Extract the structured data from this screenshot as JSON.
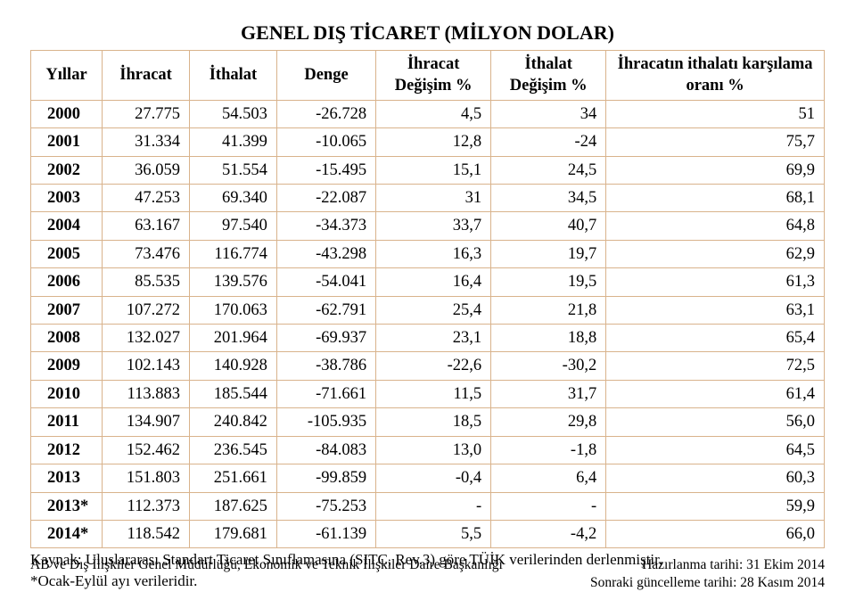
{
  "title": "GENEL DIŞ TİCARET (MİLYON DOLAR)",
  "columns": [
    "Yıllar",
    "İhracat",
    "İthalat",
    "Denge",
    "İhracat Değişim %",
    "İthalat Değişim %",
    "İhracatın ithalatı karşılama oranı %"
  ],
  "rows": [
    {
      "year": "2000",
      "ihracat": "27.775",
      "ithalat": "54.503",
      "denge": "-26.728",
      "ihrDeg": "4,5",
      "ithDeg": "34",
      "oran": "51"
    },
    {
      "year": "2001",
      "ihracat": "31.334",
      "ithalat": "41.399",
      "denge": "-10.065",
      "ihrDeg": "12,8",
      "ithDeg": "-24",
      "oran": "75,7"
    },
    {
      "year": "2002",
      "ihracat": "36.059",
      "ithalat": "51.554",
      "denge": "-15.495",
      "ihrDeg": "15,1",
      "ithDeg": "24,5",
      "oran": "69,9"
    },
    {
      "year": "2003",
      "ihracat": "47.253",
      "ithalat": "69.340",
      "denge": "-22.087",
      "ihrDeg": "31",
      "ithDeg": "34,5",
      "oran": "68,1"
    },
    {
      "year": "2004",
      "ihracat": "63.167",
      "ithalat": "97.540",
      "denge": "-34.373",
      "ihrDeg": "33,7",
      "ithDeg": "40,7",
      "oran": "64,8"
    },
    {
      "year": "2005",
      "ihracat": "73.476",
      "ithalat": "116.774",
      "denge": "-43.298",
      "ihrDeg": "16,3",
      "ithDeg": "19,7",
      "oran": "62,9"
    },
    {
      "year": "2006",
      "ihracat": "85.535",
      "ithalat": "139.576",
      "denge": "-54.041",
      "ihrDeg": "16,4",
      "ithDeg": "19,5",
      "oran": "61,3"
    },
    {
      "year": "2007",
      "ihracat": "107.272",
      "ithalat": "170.063",
      "denge": "-62.791",
      "ihrDeg": "25,4",
      "ithDeg": "21,8",
      "oran": "63,1"
    },
    {
      "year": "2008",
      "ihracat": "132.027",
      "ithalat": "201.964",
      "denge": "-69.937",
      "ihrDeg": "23,1",
      "ithDeg": "18,8",
      "oran": "65,4"
    },
    {
      "year": "2009",
      "ihracat": "102.143",
      "ithalat": "140.928",
      "denge": "-38.786",
      "ihrDeg": "-22,6",
      "ithDeg": "-30,2",
      "oran": "72,5"
    },
    {
      "year": "2010",
      "ihracat": "113.883",
      "ithalat": "185.544",
      "denge": "-71.661",
      "ihrDeg": "11,5",
      "ithDeg": "31,7",
      "oran": "61,4"
    },
    {
      "year": "2011",
      "ihracat": "134.907",
      "ithalat": "240.842",
      "denge": "-105.935",
      "ihrDeg": "18,5",
      "ithDeg": "29,8",
      "oran": "56,0"
    },
    {
      "year": "2012",
      "ihracat": "152.462",
      "ithalat": "236.545",
      "denge": "-84.083",
      "ihrDeg": "13,0",
      "ithDeg": "-1,8",
      "oran": "64,5"
    },
    {
      "year": "2013",
      "ihracat": "151.803",
      "ithalat": "251.661",
      "denge": "-99.859",
      "ihrDeg": "-0,4",
      "ithDeg": "6,4",
      "oran": "60,3"
    },
    {
      "year": "2013*",
      "ihracat": "112.373",
      "ithalat": "187.625",
      "denge": "-75.253",
      "ihrDeg": "-",
      "ithDeg": "-",
      "oran": "59,9"
    },
    {
      "year": "2014*",
      "ihracat": "118.542",
      "ithalat": "179.681",
      "denge": "-61.139",
      "ihrDeg": "5,5",
      "ithDeg": "-4,2",
      "oran": "66,0"
    }
  ],
  "notes": {
    "line1": "Kaynak: Uluslararası Standart Ticaret Sınıflamasına (SITC, Rev.3) göre TÜİK verilerinden derlenmiştir.",
    "line2": "*Ocak-Eylül ayı verileridir."
  },
  "footer": {
    "left": "AB ve Dış İlişkiler Genel Müdürlüğü, Ekonomik ve Teknik İlişkiler Daire Başkanlığı",
    "right1": "Hazırlanma tarihi: 31 Ekim 2014",
    "right2": "Sonraki güncelleme tarihi: 28 Kasım 2014"
  },
  "style": {
    "border_color": "#d9b38c",
    "text_color": "#000000",
    "background_color": "#ffffff",
    "title_fontsize": 22,
    "cell_fontsize": 18.5,
    "note_fontsize": 17,
    "footer_fontsize": 15.5,
    "column_widths_pct": [
      9,
      11,
      11,
      12.5,
      14.5,
      14.5,
      27.5
    ]
  }
}
